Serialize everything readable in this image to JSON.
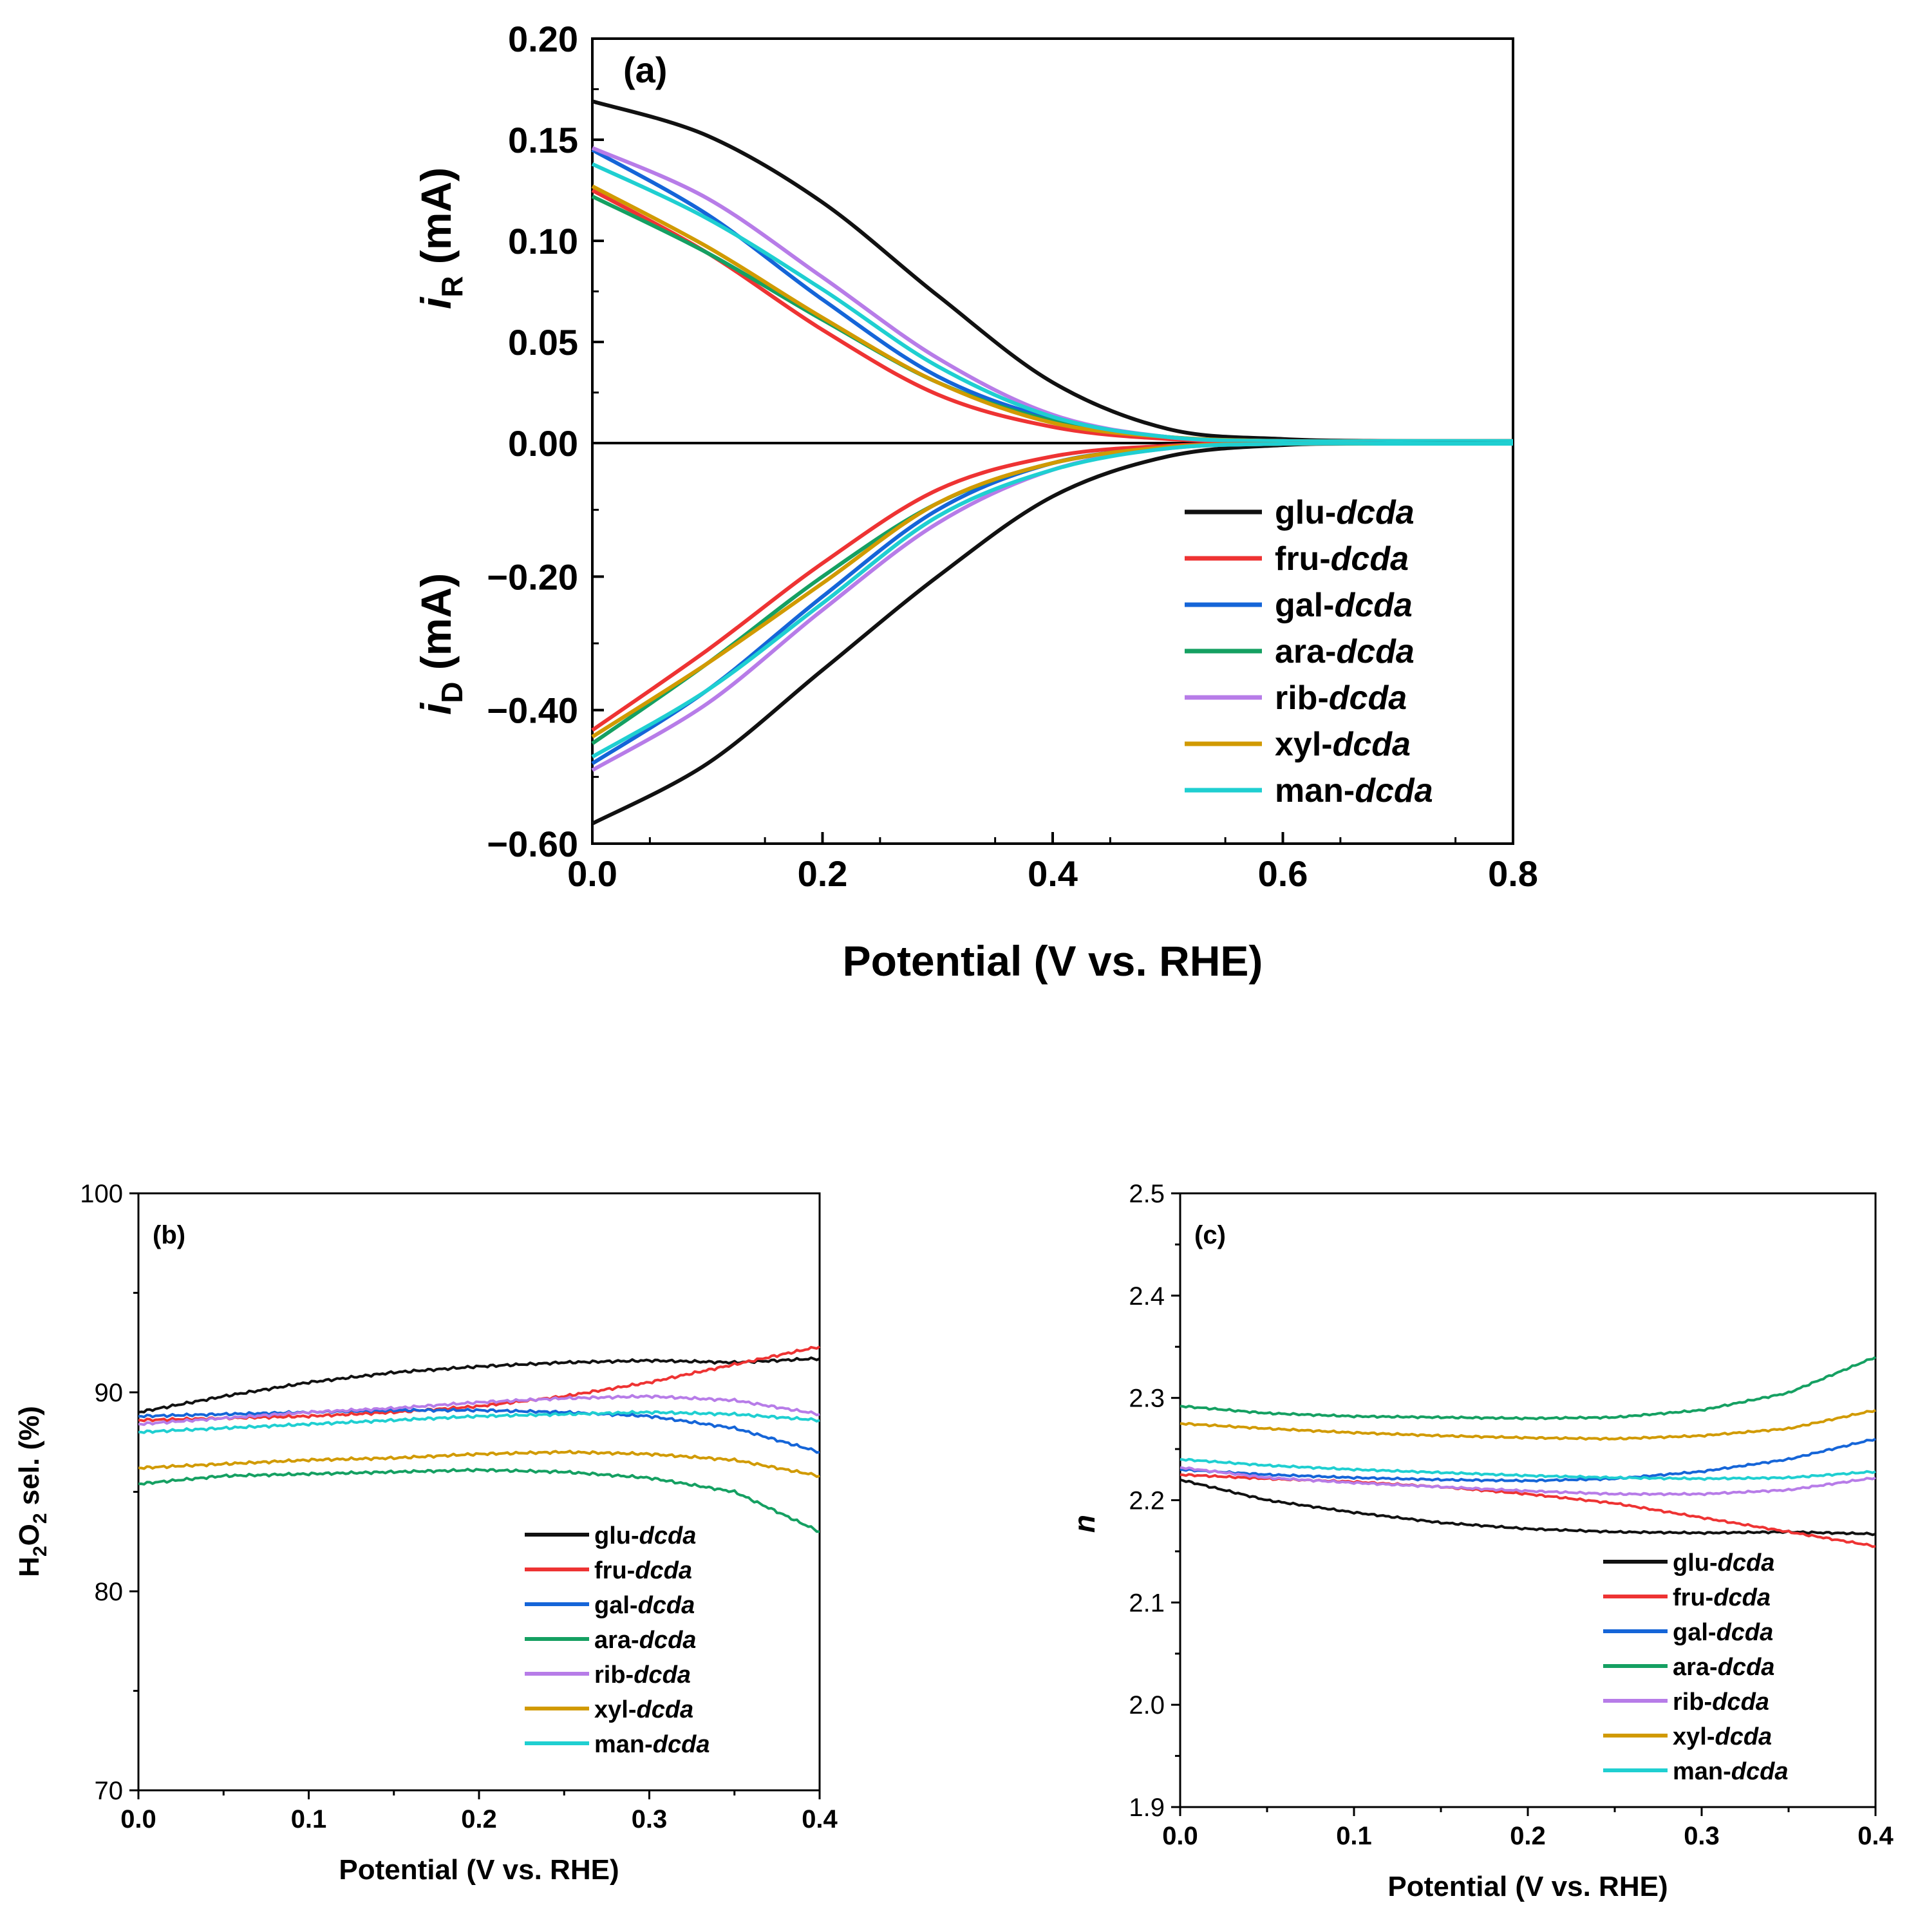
{
  "colors": {
    "glu": "#111111",
    "fru": "#ee3333",
    "gal": "#1565d8",
    "ara": "#15a062",
    "rib": "#b77ce8",
    "xyl": "#d19a00",
    "man": "#1fcfd1",
    "axis": "#000000"
  },
  "chart_data": [
    {
      "id": "a",
      "type": "line",
      "panel_label": "(a)",
      "xlabel": "Potential (V vs. RHE)",
      "ylabel_top": {
        "main": "i",
        "sub": "R",
        "unit": " (mA)"
      },
      "ylabel_bottom": {
        "main": "i",
        "sub": "D",
        "unit": " (mA)"
      },
      "xlim": [
        0.0,
        0.8
      ],
      "x_ticks": [
        "0.0",
        "0.2",
        "0.4",
        "0.6",
        "0.8"
      ],
      "ring": {
        "ylim": [
          0.0,
          0.2
        ],
        "y_ticks": [
          "0.00",
          "0.05",
          "0.10",
          "0.15",
          "0.20"
        ],
        "x": [
          0.0,
          0.1,
          0.2,
          0.3,
          0.4,
          0.5,
          0.6,
          0.7,
          0.8
        ],
        "series": [
          {
            "name": "glu-dcda",
            "key": "glu",
            "values": [
              0.169,
              0.152,
              0.119,
              0.073,
              0.03,
              0.007,
              0.002,
              0.001,
              0.001
            ]
          },
          {
            "name": "fru-dcda",
            "key": "fru",
            "values": [
              0.125,
              0.094,
              0.056,
              0.024,
              0.008,
              0.002,
              0.001,
              0.001,
              0.001
            ]
          },
          {
            "name": "gal-dcda",
            "key": "gal",
            "values": [
              0.145,
              0.113,
              0.071,
              0.033,
              0.012,
              0.003,
              0.001,
              0.001,
              0.001
            ]
          },
          {
            "name": "ara-dcda",
            "key": "ara",
            "values": [
              0.122,
              0.094,
              0.061,
              0.03,
              0.011,
              0.003,
              0.001,
              0.001,
              0.001
            ]
          },
          {
            "name": "rib-dcda",
            "key": "rib",
            "values": [
              0.146,
              0.121,
              0.082,
              0.042,
              0.014,
              0.003,
              0.001,
              0.001,
              0.001
            ]
          },
          {
            "name": "xyl-dcda",
            "key": "xyl",
            "values": [
              0.127,
              0.097,
              0.062,
              0.03,
              0.01,
              0.003,
              0.001,
              0.001,
              0.001
            ]
          },
          {
            "name": "man-dcda",
            "key": "man",
            "values": [
              0.138,
              0.111,
              0.076,
              0.038,
              0.013,
              0.003,
              0.001,
              0.001,
              0.001
            ]
          }
        ]
      },
      "disk": {
        "ylim": [
          -0.6,
          0.0
        ],
        "y_ticks": [
          "−0.60",
          "−0.40",
          "−0.20"
        ],
        "x": [
          0.0,
          0.1,
          0.2,
          0.3,
          0.4,
          0.5,
          0.6,
          0.7,
          0.8
        ],
        "series": [
          {
            "name": "glu-dcda",
            "key": "glu",
            "values": [
              -0.57,
              -0.48,
              -0.34,
              -0.2,
              -0.08,
              -0.02,
              -0.003,
              -0.001,
              -0.001
            ]
          },
          {
            "name": "fru-dcda",
            "key": "fru",
            "values": [
              -0.43,
              -0.31,
              -0.18,
              -0.07,
              -0.02,
              -0.004,
              -0.001,
              -0.001,
              -0.001
            ]
          },
          {
            "name": "gal-dcda",
            "key": "gal",
            "values": [
              -0.48,
              -0.37,
              -0.23,
              -0.1,
              -0.03,
              -0.007,
              -0.001,
              -0.001,
              -0.001
            ]
          },
          {
            "name": "ara-dcda",
            "key": "ara",
            "values": [
              -0.45,
              -0.33,
              -0.2,
              -0.09,
              -0.03,
              -0.007,
              -0.001,
              -0.001,
              -0.001
            ]
          },
          {
            "name": "rib-dcda",
            "key": "rib",
            "values": [
              -0.49,
              -0.39,
              -0.25,
              -0.12,
              -0.04,
              -0.008,
              -0.001,
              -0.001,
              -0.001
            ]
          },
          {
            "name": "xyl-dcda",
            "key": "xyl",
            "values": [
              -0.44,
              -0.33,
              -0.21,
              -0.09,
              -0.03,
              -0.006,
              -0.001,
              -0.001,
              -0.001
            ]
          },
          {
            "name": "man-dcda",
            "key": "man",
            "values": [
              -0.47,
              -0.37,
              -0.24,
              -0.11,
              -0.04,
              -0.008,
              -0.001,
              -0.001,
              -0.001
            ]
          }
        ]
      },
      "legend": [
        "glu-dcda",
        "fru-dcda",
        "gal-dcda",
        "ara-dcda",
        "rib-dcda",
        "xyl-dcda",
        "man-dcda"
      ],
      "legend_position": "lower-right"
    },
    {
      "id": "b",
      "type": "line",
      "panel_label": "(b)",
      "xlabel": "Potential (V vs. RHE)",
      "ylabel": {
        "parts": [
          "H",
          "2",
          "O",
          "2",
          " sel. (%)"
        ]
      },
      "xlim": [
        0.0,
        0.4
      ],
      "ylim": [
        70,
        100
      ],
      "x_ticks": [
        "0.0",
        "0.1",
        "0.2",
        "0.3",
        "0.4"
      ],
      "y_ticks": [
        "70",
        "80",
        "90",
        "100"
      ],
      "x": [
        0.0,
        0.05,
        0.1,
        0.15,
        0.2,
        0.25,
        0.3,
        0.35,
        0.4
      ],
      "series": [
        {
          "name": "glu-dcda",
          "key": "glu",
          "values": [
            89.0,
            89.8,
            90.5,
            91.0,
            91.3,
            91.5,
            91.6,
            91.5,
            91.7
          ]
        },
        {
          "name": "fru-dcda",
          "key": "fru",
          "values": [
            88.6,
            88.7,
            88.8,
            89.0,
            89.3,
            89.8,
            90.5,
            91.4,
            92.3
          ]
        },
        {
          "name": "gal-dcda",
          "key": "gal",
          "values": [
            88.8,
            88.9,
            89.0,
            89.1,
            89.1,
            89.0,
            88.8,
            88.2,
            87.0
          ]
        },
        {
          "name": "ara-dcda",
          "key": "ara",
          "values": [
            85.4,
            85.8,
            85.9,
            86.0,
            86.1,
            86.0,
            85.7,
            85.0,
            83.0
          ]
        },
        {
          "name": "rib-dcda",
          "key": "rib",
          "values": [
            88.4,
            88.7,
            89.0,
            89.2,
            89.5,
            89.7,
            89.8,
            89.6,
            88.9
          ]
        },
        {
          "name": "xyl-dcda",
          "key": "xyl",
          "values": [
            86.2,
            86.4,
            86.6,
            86.7,
            86.9,
            87.0,
            86.9,
            86.6,
            85.8
          ]
        },
        {
          "name": "man-dcda",
          "key": "man",
          "values": [
            88.0,
            88.2,
            88.4,
            88.6,
            88.8,
            88.9,
            89.0,
            88.9,
            88.6
          ]
        }
      ],
      "legend": [
        "glu-dcda",
        "fru-dcda",
        "gal-dcda",
        "ara-dcda",
        "rib-dcda",
        "xyl-dcda",
        "man-dcda"
      ],
      "legend_position": "lower-right"
    },
    {
      "id": "c",
      "type": "line",
      "panel_label": "(c)",
      "xlabel": "Potential (V vs. RHE)",
      "ylabel": "n",
      "xlim": [
        0.0,
        0.4
      ],
      "ylim": [
        1.9,
        2.5
      ],
      "x_ticks": [
        "0.0",
        "0.1",
        "0.2",
        "0.3",
        "0.4"
      ],
      "y_ticks": [
        "1.9",
        "2.0",
        "2.1",
        "2.2",
        "2.3",
        "2.4",
        "2.5"
      ],
      "x": [
        0.0,
        0.05,
        0.1,
        0.15,
        0.2,
        0.25,
        0.3,
        0.35,
        0.4
      ],
      "series": [
        {
          "name": "glu-dcda",
          "key": "glu",
          "values": [
            2.22,
            2.2,
            2.188,
            2.178,
            2.172,
            2.169,
            2.168,
            2.169,
            2.167
          ]
        },
        {
          "name": "fru-dcda",
          "key": "fru",
          "values": [
            2.225,
            2.221,
            2.218,
            2.213,
            2.206,
            2.197,
            2.183,
            2.169,
            2.155
          ]
        },
        {
          "name": "gal-dcda",
          "key": "gal",
          "values": [
            2.23,
            2.225,
            2.222,
            2.22,
            2.219,
            2.221,
            2.228,
            2.24,
            2.26
          ]
        },
        {
          "name": "ara-dcda",
          "key": "ara",
          "values": [
            2.292,
            2.285,
            2.282,
            2.281,
            2.28,
            2.281,
            2.288,
            2.305,
            2.34
          ]
        },
        {
          "name": "rib-dcda",
          "key": "rib",
          "values": [
            2.232,
            2.222,
            2.217,
            2.213,
            2.209,
            2.206,
            2.206,
            2.21,
            2.222
          ]
        },
        {
          "name": "xyl-dcda",
          "key": "xyl",
          "values": [
            2.275,
            2.27,
            2.266,
            2.263,
            2.261,
            2.26,
            2.263,
            2.27,
            2.288
          ]
        },
        {
          "name": "man-dcda",
          "key": "man",
          "values": [
            2.24,
            2.234,
            2.23,
            2.227,
            2.224,
            2.222,
            2.221,
            2.222,
            2.228
          ]
        }
      ],
      "legend": [
        "glu-dcda",
        "fru-dcda",
        "gal-dcda",
        "ara-dcda",
        "rib-dcda",
        "xyl-dcda",
        "man-dcda"
      ],
      "legend_position": "lower-right"
    }
  ]
}
